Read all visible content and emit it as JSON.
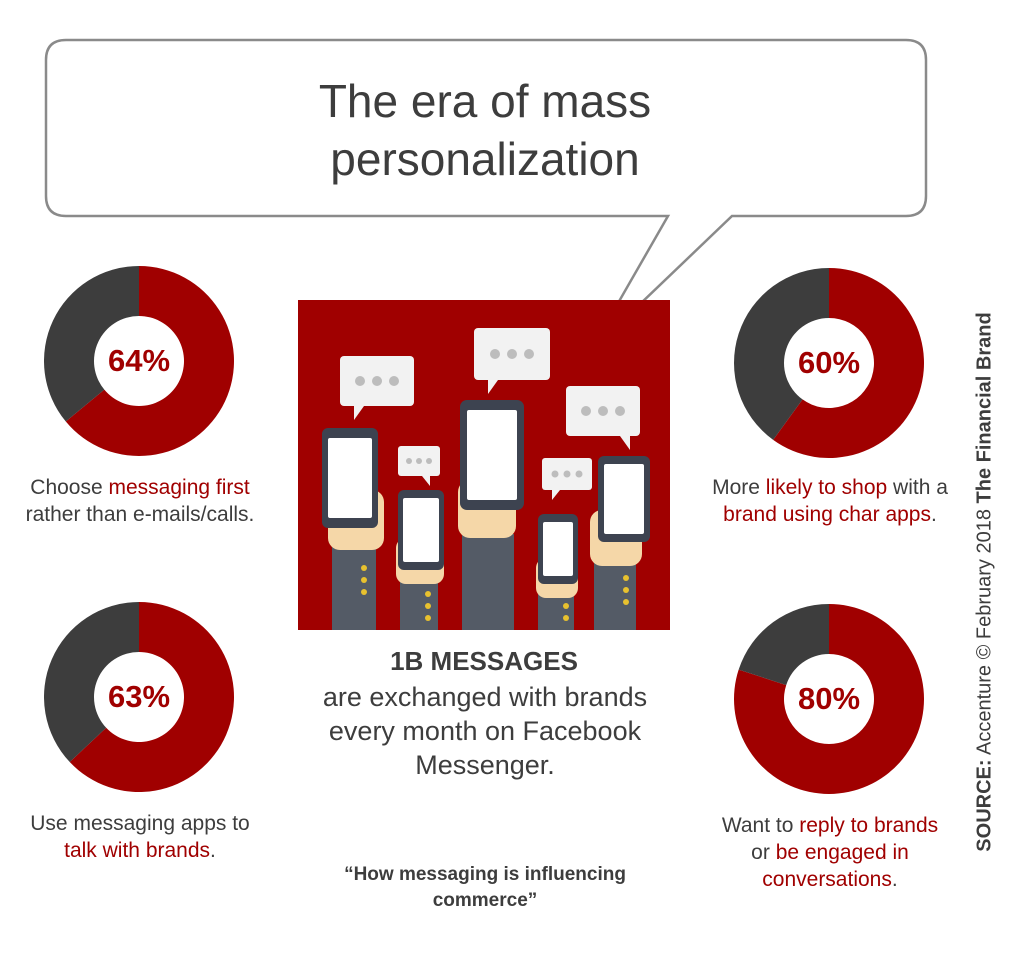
{
  "title": "The era of mass\npersonalization",
  "colors": {
    "accent": "#a00000",
    "dark": "#3d3d3d",
    "illustration_bg": "#a00000"
  },
  "chart_data": [
    {
      "type": "pie",
      "values": [
        64,
        36
      ],
      "label": "64%",
      "caption": {
        "before": "Choose ",
        "highlight1": "messaging first",
        "mid": " rather than e-mails/calls.",
        "highlight2": "",
        "after": ""
      }
    },
    {
      "type": "pie",
      "values": [
        63,
        37
      ],
      "label": "63%",
      "caption": {
        "before": "Use messaging apps to ",
        "highlight1": "talk with brands",
        "mid": ".",
        "highlight2": "",
        "after": ""
      }
    },
    {
      "type": "pie",
      "values": [
        60,
        40
      ],
      "label": "60%",
      "caption": {
        "before": "More ",
        "highlight1": "likely to shop",
        "mid": " with a ",
        "highlight2": "brand using char apps",
        "after": "."
      }
    },
    {
      "type": "pie",
      "values": [
        80,
        20
      ],
      "label": "80%",
      "caption": {
        "before": "Want to ",
        "highlight1": "reply to brands",
        "mid": " or ",
        "highlight2": "be engaged in conversations",
        "after": "."
      }
    }
  ],
  "center": {
    "headline": "1B MESSAGES",
    "body": "are exchanged with brands every month on Facebook Messenger."
  },
  "quote": "“How messaging is influencing commerce”",
  "source": {
    "label": "SOURCE:",
    "text": " Accenture © February 2018 ",
    "brand": "The Financial Brand"
  }
}
